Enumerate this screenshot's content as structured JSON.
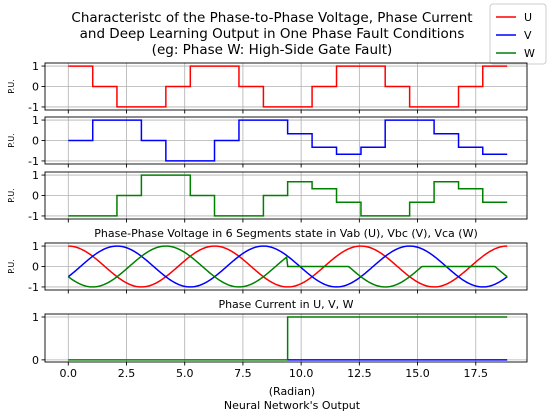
{
  "chart_data": {
    "type": "line",
    "title_lines": [
      "Characteristc of the Phase-to-Phase Voltage, Phase Current",
      "and Deep Learning Output in One Phase Fault Conditions",
      "(eg: Phase W: High-Side Gate Fault)"
    ],
    "legend": [
      {
        "name": "U",
        "color": "#ff0000"
      },
      {
        "name": "V",
        "color": "#0000ff"
      },
      {
        "name": "W",
        "color": "#008000"
      }
    ],
    "xlim": [
      -1.0,
      19.7
    ],
    "xticks": [
      0.0,
      2.5,
      5.0,
      7.5,
      10.0,
      12.5,
      15.0,
      17.5
    ],
    "xtick_labels": [
      "0.0",
      "2.5",
      "5.0",
      "7.5",
      "10.0",
      "12.5",
      "15.0",
      "17.5"
    ],
    "xlabel_bottom": "(Radian)",
    "grid": true,
    "panels": [
      {
        "ylabel": "P.U.",
        "ylim": [
          -1.15,
          1.15
        ],
        "yticks": [
          -1,
          0,
          1
        ],
        "series": [
          {
            "name": "U",
            "color": "#ff0000",
            "x": [
              0,
              1.05,
              1.05,
              2.09,
              2.09,
              4.19,
              4.19,
              5.24,
              5.24,
              7.33,
              7.33,
              8.38,
              8.38,
              10.47,
              10.47,
              11.52,
              11.52,
              13.61,
              13.61,
              14.66,
              14.66,
              16.76,
              16.76,
              17.8,
              17.8,
              18.85
            ],
            "y": [
              1,
              1,
              0,
              0,
              -1,
              -1,
              0,
              0,
              1,
              1,
              0,
              0,
              -1,
              -1,
              0,
              0,
              1,
              1,
              0,
              0,
              -1,
              -1,
              0,
              0,
              1,
              1
            ]
          }
        ]
      },
      {
        "ylabel": "P.U.",
        "ylim": [
          -1.15,
          1.15
        ],
        "yticks": [
          -1,
          0,
          1
        ],
        "series": [
          {
            "name": "V",
            "color": "#0000ff",
            "x": [
              0,
              1.05,
              1.05,
              3.14,
              3.14,
              4.19,
              4.19,
              6.28,
              6.28,
              7.33,
              7.33,
              9.42,
              9.42,
              10.47,
              10.47,
              11.52,
              11.52,
              12.57,
              12.57,
              13.61,
              13.61,
              15.71,
              15.71,
              16.76,
              16.76,
              17.8,
              17.8,
              18.85
            ],
            "y": [
              0,
              0,
              1,
              1,
              0,
              0,
              -1,
              -1,
              0,
              0,
              1,
              1,
              0.33,
              0.33,
              -0.33,
              -0.33,
              -0.67,
              -0.67,
              -0.33,
              -0.33,
              1,
              1,
              0.33,
              0.33,
              -0.33,
              -0.33,
              -0.67,
              -0.67
            ]
          }
        ]
      },
      {
        "ylabel": "P.U.",
        "ylim": [
          -1.15,
          1.15
        ],
        "yticks": [
          -1,
          0,
          1
        ],
        "series": [
          {
            "name": "W",
            "color": "#008000",
            "x": [
              0,
              2.09,
              2.09,
              3.14,
              3.14,
              5.24,
              5.24,
              6.28,
              6.28,
              8.38,
              8.38,
              9.42,
              9.42,
              10.47,
              10.47,
              11.52,
              11.52,
              12.57,
              12.57,
              14.66,
              14.66,
              15.71,
              15.71,
              16.76,
              16.76,
              17.8,
              17.8,
              18.85
            ],
            "y": [
              -1,
              -1,
              0,
              0,
              1,
              1,
              0,
              0,
              -1,
              -1,
              0,
              0,
              0.67,
              0.67,
              0.33,
              0.33,
              -0.33,
              -0.33,
              -1,
              -1,
              -0.33,
              -0.33,
              0.67,
              0.67,
              0.33,
              0.33,
              -0.33,
              -0.33
            ]
          }
        ]
      },
      {
        "title": "Phase-Phase Voltage in 6 Segments state in Vab (U), Vbc (V), Vca (W)",
        "ylabel": "P.U.",
        "ylim": [
          -1.15,
          1.15
        ],
        "yticks": [
          -1,
          0,
          1
        ],
        "series": [
          {
            "name": "U",
            "color": "#ff0000",
            "formula": "cos(x)",
            "x_range": [
              0,
              18.85
            ]
          },
          {
            "name": "V",
            "color": "#0000ff",
            "formula": "cos(x - 2.094)",
            "x_range": [
              0,
              18.85
            ]
          },
          {
            "name": "W",
            "color": "#008000",
            "formula": "cos(x + 2.094) until 9.42; then -(cos(x)+cos(x-2.094)) clamped to 0 where positive",
            "x_range": [
              0,
              18.85
            ]
          }
        ]
      },
      {
        "title": "Phase Current in U, V, W",
        "ylabel": "",
        "ylim": [
          -0.05,
          1.07
        ],
        "yticks": [
          0,
          1
        ],
        "series": [
          {
            "name": "W",
            "color": "#008000",
            "x": [
              0,
              9.42,
              9.42,
              18.85
            ],
            "y": [
              0,
              0,
              1,
              1
            ]
          },
          {
            "name": "V",
            "color": "#0000ff",
            "x": [
              9.42,
              18.85
            ],
            "y": [
              0,
              0
            ]
          }
        ]
      }
    ],
    "bottom_title": "Neural Network's Output"
  }
}
